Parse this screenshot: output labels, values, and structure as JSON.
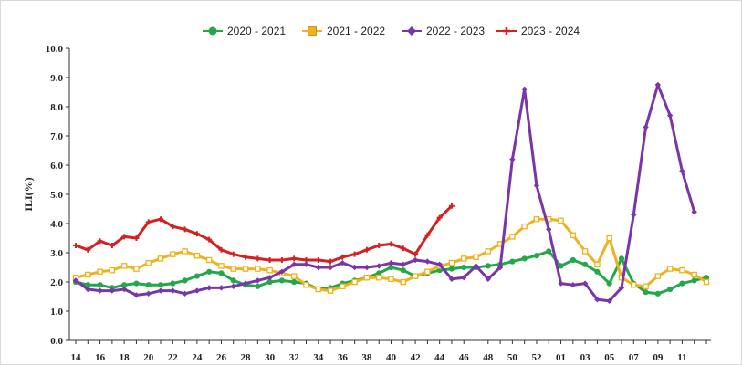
{
  "chart_data": {
    "type": "line",
    "title": "",
    "xlabel": "",
    "ylabel": "ILI(%)",
    "ylim": [
      0,
      10
    ],
    "yticks": [
      "0.0",
      "1.0",
      "2.0",
      "3.0",
      "4.0",
      "5.0",
      "6.0",
      "7.0",
      "8.0",
      "9.0",
      "10.0"
    ],
    "x_ticklabels": [
      "14",
      "16",
      "18",
      "20",
      "22",
      "24",
      "26",
      "28",
      "30",
      "32",
      "34",
      "36",
      "38",
      "40",
      "42",
      "44",
      "46",
      "48",
      "50",
      "52",
      "01",
      "03",
      "05",
      "07",
      "09",
      "11"
    ],
    "legend_position": "top",
    "series": [
      {
        "name": "2020 - 2021",
        "color": "#22a84a",
        "marker": "circle",
        "values": [
          2.0,
          1.9,
          1.9,
          1.8,
          1.9,
          1.95,
          1.9,
          1.9,
          1.95,
          2.05,
          2.2,
          2.35,
          2.3,
          2.05,
          1.9,
          1.85,
          2.0,
          2.05,
          2.0,
          1.95,
          1.75,
          1.8,
          1.95,
          2.05,
          2.15,
          2.3,
          2.5,
          2.4,
          2.2,
          2.3,
          2.4,
          2.45,
          2.5,
          2.5,
          2.55,
          2.6,
          2.7,
          2.8,
          2.9,
          3.05,
          2.55,
          2.75,
          2.6,
          2.35,
          1.95,
          2.8,
          1.95,
          1.65,
          1.6,
          1.75,
          1.95,
          2.05,
          2.15
        ]
      },
      {
        "name": "2021 - 2022",
        "color": "#f0b21c",
        "marker": "square",
        "values": [
          2.15,
          2.25,
          2.35,
          2.4,
          2.55,
          2.45,
          2.65,
          2.8,
          2.95,
          3.05,
          2.9,
          2.75,
          2.55,
          2.45,
          2.45,
          2.45,
          2.4,
          2.3,
          2.2,
          1.9,
          1.75,
          1.7,
          1.85,
          2.0,
          2.15,
          2.15,
          2.1,
          2.0,
          2.2,
          2.35,
          2.55,
          2.65,
          2.8,
          2.85,
          3.05,
          3.3,
          3.55,
          3.9,
          4.15,
          4.15,
          4.1,
          3.6,
          3.05,
          2.6,
          3.5,
          2.15,
          1.9,
          1.85,
          2.2,
          2.45,
          2.4,
          2.25,
          2.0
        ]
      },
      {
        "name": "2022 - 2023",
        "color": "#7a35a8",
        "marker": "diamond",
        "values": [
          2.05,
          1.75,
          1.7,
          1.7,
          1.75,
          1.55,
          1.6,
          1.7,
          1.7,
          1.6,
          1.7,
          1.8,
          1.8,
          1.85,
          1.95,
          2.05,
          2.15,
          2.35,
          2.6,
          2.6,
          2.5,
          2.5,
          2.65,
          2.5,
          2.5,
          2.55,
          2.65,
          2.6,
          2.75,
          2.7,
          2.6,
          2.1,
          2.15,
          2.55,
          2.1,
          2.5,
          6.2,
          8.6,
          5.3,
          3.8,
          1.95,
          1.9,
          1.95,
          1.4,
          1.35,
          1.8,
          4.3,
          7.3,
          8.75,
          7.7,
          5.8,
          4.4
        ]
      },
      {
        "name": "2023 - 2024",
        "color": "#d42020",
        "marker": "plus",
        "values": [
          3.25,
          3.1,
          3.4,
          3.25,
          3.55,
          3.5,
          4.05,
          4.15,
          3.9,
          3.8,
          3.65,
          3.45,
          3.1,
          2.95,
          2.85,
          2.8,
          2.75,
          2.75,
          2.8,
          2.75,
          2.75,
          2.7,
          2.85,
          2.95,
          3.1,
          3.25,
          3.3,
          3.15,
          2.95,
          3.6,
          4.2,
          4.6
        ]
      }
    ]
  }
}
